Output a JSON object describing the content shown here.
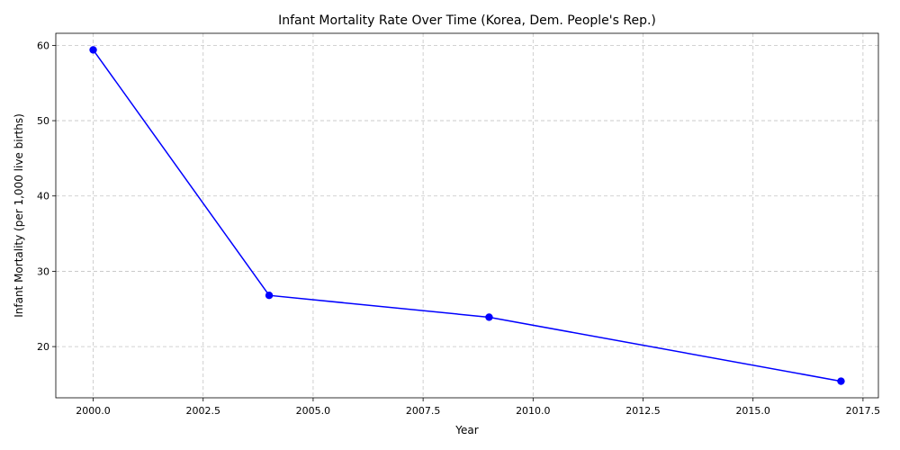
{
  "chart_data": {
    "type": "line",
    "title": "Infant Mortality Rate Over Time (Korea, Dem. People's Rep.)",
    "xlabel": "Year",
    "ylabel": "Infant Mortality (per 1,000 live births)",
    "xlim": [
      1999.15,
      2017.85
    ],
    "ylim": [
      13.2,
      61.6
    ],
    "x_ticks": [
      2000.0,
      2002.5,
      2005.0,
      2007.5,
      2010.0,
      2012.5,
      2015.0,
      2017.5
    ],
    "x_tick_labels": [
      "2000.0",
      "2002.5",
      "2005.0",
      "2007.5",
      "2010.0",
      "2012.5",
      "2015.0",
      "2017.5"
    ],
    "y_ticks": [
      20,
      30,
      40,
      50,
      60
    ],
    "y_tick_labels": [
      "20",
      "30",
      "40",
      "50",
      "60"
    ],
    "grid": true,
    "series": [
      {
        "color": "#0000ff",
        "marker": "circle",
        "x": [
          2000,
          2004,
          2009,
          2017
        ],
        "y": [
          59.4,
          26.8,
          23.9,
          15.4
        ]
      }
    ]
  }
}
